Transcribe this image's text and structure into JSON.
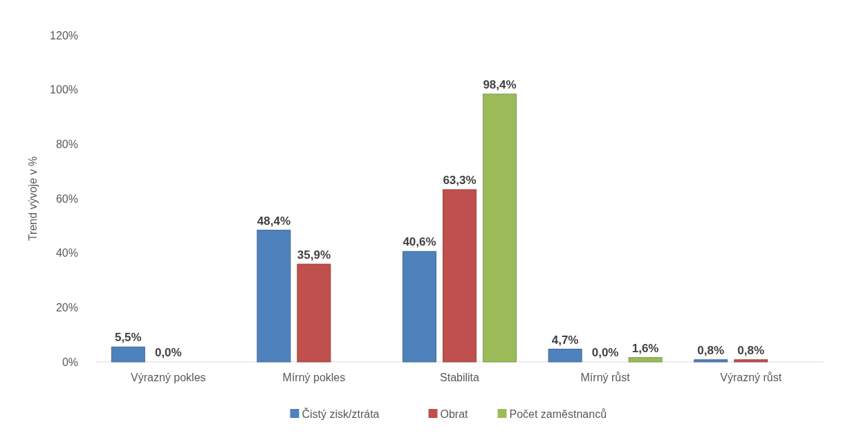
{
  "chart_data": {
    "type": "bar",
    "ylabel": "Trend vývoje v %",
    "categories": [
      "Výrazný pokles",
      "Mírný pokles",
      "Stabilita",
      "Mírný růst",
      "Výrazný růst"
    ],
    "series": [
      {
        "name": "Čistý zisk/ztráta",
        "color": "#4f81bd",
        "values": [
          5.5,
          48.4,
          40.6,
          4.7,
          0.8
        ],
        "value_labels": [
          "5,5%",
          "48,4%",
          "40,6%",
          "4,7%",
          "0,8%"
        ]
      },
      {
        "name": "Obrat",
        "color": "#c0504d",
        "values": [
          0,
          35.9,
          63.3,
          0,
          0.8
        ],
        "value_labels": [
          "0,0%",
          "35,9%",
          "63,3%",
          "0,0%",
          "0,8%"
        ]
      },
      {
        "name": "Počet zaměstnanců",
        "color": "#9bbb59",
        "values": [
          null,
          null,
          98.4,
          1.6,
          null
        ],
        "value_labels": [
          null,
          null,
          "98,4%",
          "1,6%",
          null
        ]
      }
    ],
    "ylim": [
      0,
      120
    ],
    "yticks": [
      {
        "value": 0,
        "label": "0%"
      },
      {
        "value": 20,
        "label": "20%"
      },
      {
        "value": 40,
        "label": "40%"
      },
      {
        "value": 60,
        "label": "60%"
      },
      {
        "value": 80,
        "label": "80%"
      },
      {
        "value": 100,
        "label": "100%"
      },
      {
        "value": 120,
        "label": "120%"
      }
    ],
    "grid": false,
    "legend": "bottom"
  }
}
